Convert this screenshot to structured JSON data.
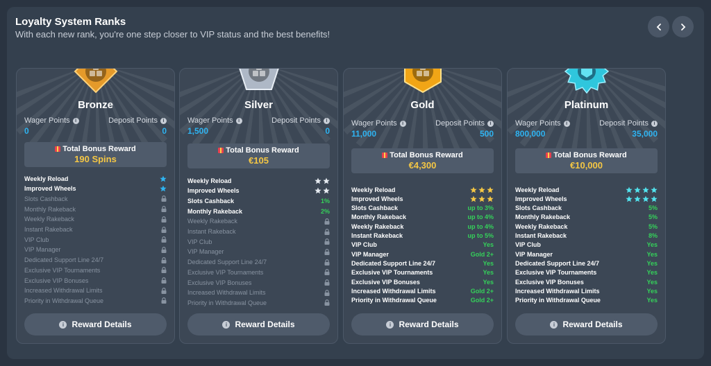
{
  "header": {
    "title": "Loyalty System Ranks",
    "subtitle": "With each new rank, you're one step closer to VIP status and the best benefits!"
  },
  "nav": {
    "prev_icon": "chevron-left-icon",
    "next_icon": "chevron-right-icon"
  },
  "labels": {
    "wager_points": "Wager Points",
    "deposit_points": "Deposit Points",
    "total_bonus_reward": "Total Bonus Reward",
    "reward_details": "Reward Details"
  },
  "colors": {
    "bronze": "#e59a2a",
    "silver": "#aeb8c6",
    "gold": "#f1a516",
    "platinum": "#2fc6dd",
    "points_blue": "#2fb4f2",
    "bonus_yellow": "#f5c744",
    "feature_green": "#35d15a"
  },
  "ranks": [
    {
      "name": "Bronze",
      "badge_icon": "bronze-rank-badge-icon",
      "wager_points": "0",
      "deposit_points": "0",
      "bonus": "190 Spins",
      "features": [
        {
          "name": "Weekly Reload",
          "stars": 1
        },
        {
          "name": "Improved Wheels",
          "stars": 1
        },
        {
          "name": "Slots Cashback",
          "locked": true
        },
        {
          "name": "Monthly Rakeback",
          "locked": true
        },
        {
          "name": "Weekly Rakeback",
          "locked": true
        },
        {
          "name": "Instant Rakeback",
          "locked": true
        },
        {
          "name": "VIP Club",
          "locked": true
        },
        {
          "name": "VIP Manager",
          "locked": true
        },
        {
          "name": "Dedicated Support Line 24/7",
          "locked": true
        },
        {
          "name": "Exclusive VIP Tournaments",
          "locked": true
        },
        {
          "name": "Exclusive VIP Bonuses",
          "locked": true
        },
        {
          "name": "Increased Withdrawal Limits",
          "locked": true
        },
        {
          "name": "Priority in Withdrawal Queue",
          "locked": true
        }
      ]
    },
    {
      "name": "Silver",
      "badge_icon": "silver-rank-badge-icon",
      "wager_points": "1,500",
      "deposit_points": "0",
      "bonus": "€105",
      "features": [
        {
          "name": "Weekly Reload",
          "stars": 2
        },
        {
          "name": "Improved Wheels",
          "stars": 2
        },
        {
          "name": "Slots Cashback",
          "value": "1%"
        },
        {
          "name": "Monthly Rakeback",
          "value": "2%"
        },
        {
          "name": "Weekly Rakeback",
          "locked": true
        },
        {
          "name": "Instant Rakeback",
          "locked": true
        },
        {
          "name": "VIP Club",
          "locked": true
        },
        {
          "name": "VIP Manager",
          "locked": true
        },
        {
          "name": "Dedicated Support Line 24/7",
          "locked": true
        },
        {
          "name": "Exclusive VIP Tournaments",
          "locked": true
        },
        {
          "name": "Exclusive VIP Bonuses",
          "locked": true
        },
        {
          "name": "Increased Withdrawal Limits",
          "locked": true
        },
        {
          "name": "Priority in Withdrawal Queue",
          "locked": true
        }
      ]
    },
    {
      "name": "Gold",
      "badge_icon": "gold-rank-badge-icon",
      "wager_points": "11,000",
      "deposit_points": "500",
      "bonus": "€4,300",
      "features": [
        {
          "name": "Weekly Reload",
          "stars": 3
        },
        {
          "name": "Improved Wheels",
          "stars": 3
        },
        {
          "name": "Slots Cashback",
          "value": "up to 3%"
        },
        {
          "name": "Monthly Rakeback",
          "value": "up to 4%"
        },
        {
          "name": "Weekly Rakeback",
          "value": "up to 4%"
        },
        {
          "name": "Instant Rakeback",
          "value": "up to 5%"
        },
        {
          "name": "VIP Club",
          "value": "Yes"
        },
        {
          "name": "VIP Manager",
          "value": "Gold 2+"
        },
        {
          "name": "Dedicated Support Line 24/7",
          "value": "Yes"
        },
        {
          "name": "Exclusive VIP Tournaments",
          "value": "Yes"
        },
        {
          "name": "Exclusive VIP Bonuses",
          "value": "Yes"
        },
        {
          "name": "Increased Withdrawal Limits",
          "value": "Gold 2+"
        },
        {
          "name": "Priority in Withdrawal Queue",
          "value": "Gold 2+"
        }
      ]
    },
    {
      "name": "Platinum",
      "badge_icon": "platinum-rank-badge-icon",
      "wager_points": "800,000",
      "deposit_points": "35,000",
      "bonus": "€10,000",
      "features": [
        {
          "name": "Weekly Reload",
          "stars": 4
        },
        {
          "name": "Improved Wheels",
          "stars": 4
        },
        {
          "name": "Slots Cashback",
          "value": "5%"
        },
        {
          "name": "Monthly Rakeback",
          "value": "5%"
        },
        {
          "name": "Weekly Rakeback",
          "value": "5%"
        },
        {
          "name": "Instant Rakeback",
          "value": "8%"
        },
        {
          "name": "VIP Club",
          "value": "Yes"
        },
        {
          "name": "VIP Manager",
          "value": "Yes"
        },
        {
          "name": "Dedicated Support Line 24/7",
          "value": "Yes"
        },
        {
          "name": "Exclusive VIP Tournaments",
          "value": "Yes"
        },
        {
          "name": "Exclusive VIP Bonuses",
          "value": "Yes"
        },
        {
          "name": "Increased Withdrawal Limits",
          "value": "Yes"
        },
        {
          "name": "Priority in Withdrawal Queue",
          "value": "Yes"
        }
      ]
    }
  ]
}
